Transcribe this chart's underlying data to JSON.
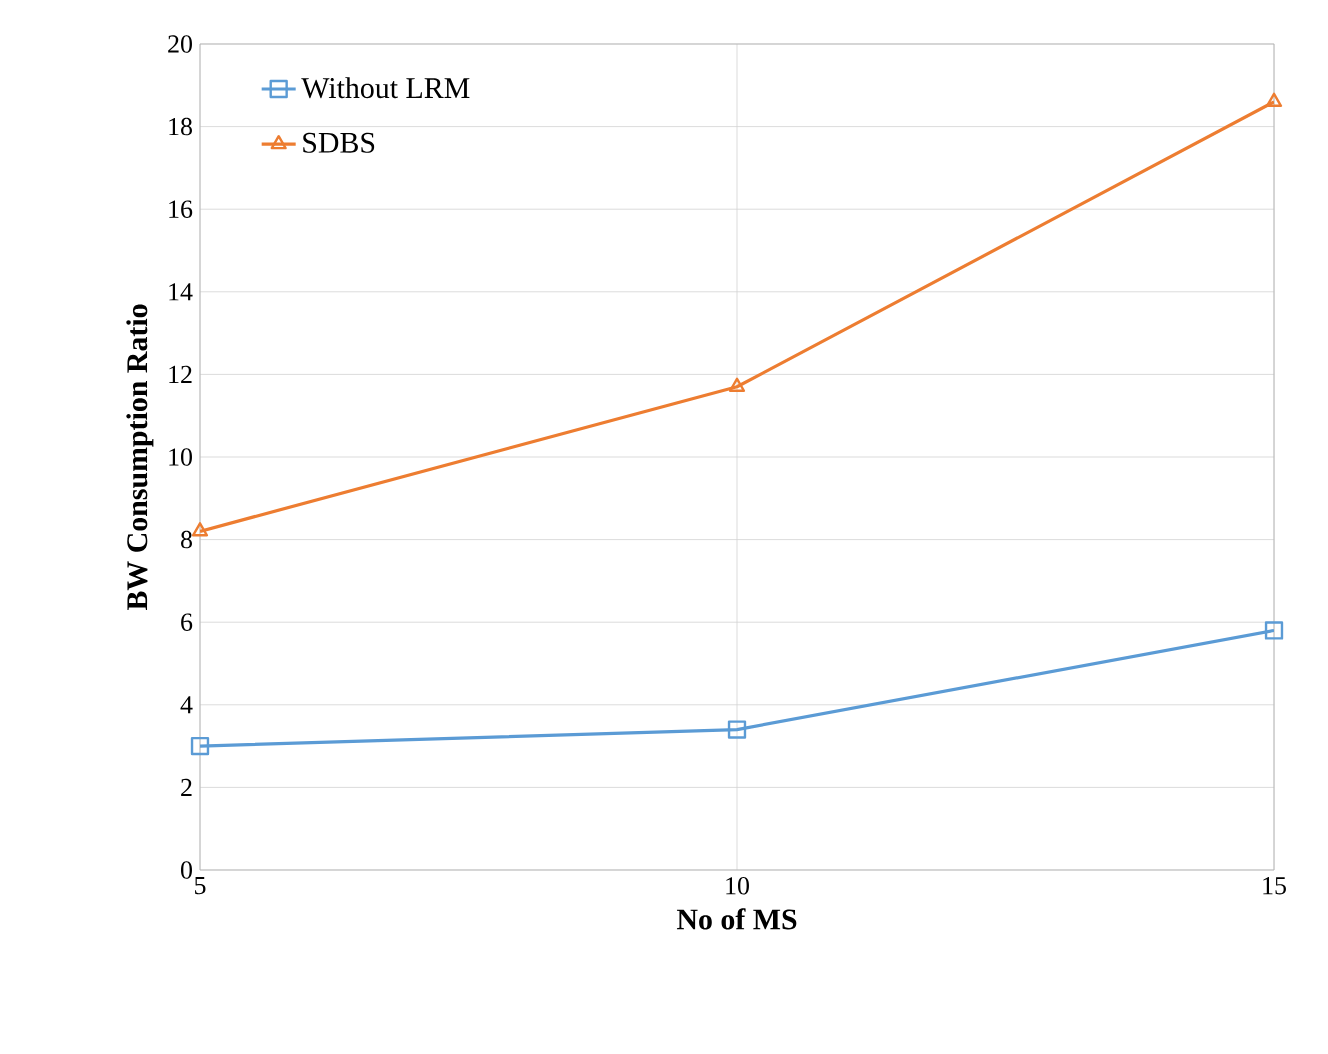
{
  "chart_data": {
    "type": "line",
    "xlabel": "No of MS",
    "ylabel": "BW Consumption Ratio",
    "x": [
      5,
      10,
      15
    ],
    "series": [
      {
        "name": "Without LRM",
        "color": "#5b9bd5",
        "values": [
          3.0,
          3.4,
          5.8
        ],
        "marker": "square"
      },
      {
        "name": "SDBS",
        "color": "#ed7d31",
        "values": [
          8.2,
          11.7,
          18.6
        ],
        "marker": "triangle"
      }
    ],
    "xlim": [
      5,
      15
    ],
    "xticks": [
      5,
      10,
      15
    ],
    "ylim": [
      0,
      20
    ],
    "yticks": [
      0,
      2,
      4,
      6,
      8,
      10,
      12,
      14,
      16,
      18,
      20
    ],
    "grid": true,
    "legend": "top left"
  }
}
